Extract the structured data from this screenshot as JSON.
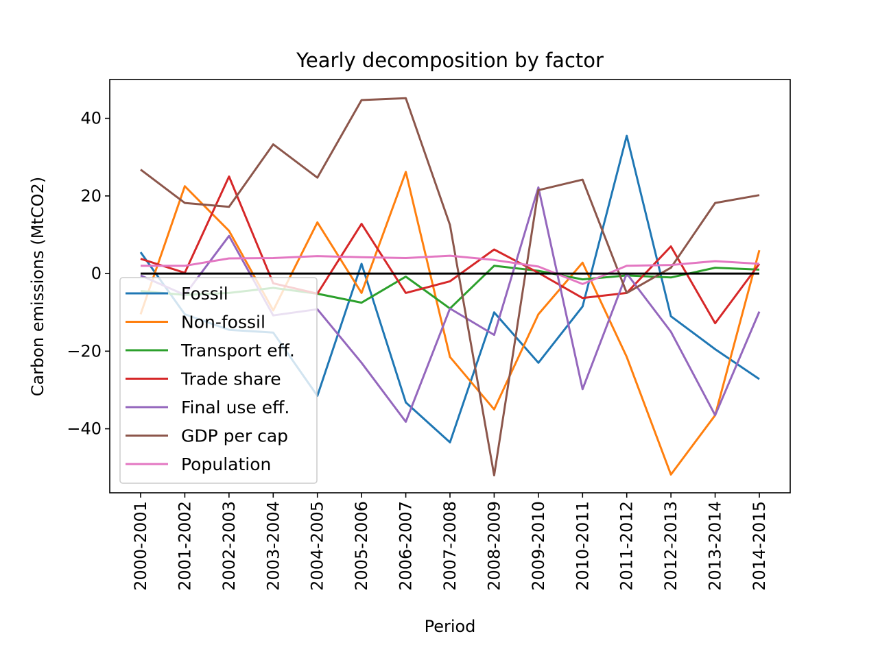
{
  "chart_data": {
    "type": "line",
    "title": "Yearly decomposition by factor",
    "xlabel": "Period",
    "ylabel": "Carbon emissions (MtCO2)",
    "categories": [
      "2000-2001",
      "2001-2002",
      "2002-2003",
      "2003-2004",
      "2004-2005",
      "2005-2006",
      "2006-2007",
      "2007-2008",
      "2008-2009",
      "2009-2010",
      "2010-2011",
      "2011-2012",
      "2012-2013",
      "2013-2014",
      "2014-2015"
    ],
    "ylim": [
      -56.5,
      50
    ],
    "yticks": [
      -40,
      -20,
      0,
      20,
      40
    ],
    "ytick_labels": [
      "−40",
      "−20",
      "0",
      "20",
      "40"
    ],
    "grid": false,
    "legend_position": "lower-left",
    "zero_line": {
      "value": 0,
      "color": "#000000"
    },
    "series": [
      {
        "name": "Fossil",
        "color": "#1f77b4",
        "values": [
          5.5,
          -10.5,
          -14.5,
          -15.2,
          -31.5,
          2.5,
          -33.2,
          -43.5,
          -10,
          -23,
          -8.5,
          35.5,
          -11,
          -19.5,
          -27.2
        ]
      },
      {
        "name": "Non-fossil",
        "color": "#ff7f0e",
        "values": [
          -10.5,
          22.5,
          11,
          -9.5,
          13.2,
          -5,
          26.2,
          -21.5,
          -35,
          -10.5,
          2.8,
          -21.5,
          -51.8,
          -36.5,
          6
        ]
      },
      {
        "name": "Transport eff.",
        "color": "#2ca02c",
        "values": [
          -4.5,
          -5.5,
          -5,
          -3.7,
          -5.2,
          -7.5,
          -0.8,
          -9,
          2,
          0.7,
          -1.5,
          -0.5,
          -1,
          1.5,
          1
        ]
      },
      {
        "name": "Trade share",
        "color": "#d62728",
        "values": [
          3.8,
          0.2,
          25,
          -2.5,
          -5.2,
          12.8,
          -5,
          -2,
          6.2,
          0.2,
          -6.3,
          -5,
          7,
          -12.8,
          2.5
        ]
      },
      {
        "name": "Final use eff.",
        "color": "#9467bd",
        "values": [
          -0.5,
          -5.5,
          9.7,
          -10.8,
          -9.2,
          -23,
          -38.2,
          -9,
          -15.8,
          22.2,
          -29.8,
          0,
          -15,
          -36.5,
          -9.8
        ]
      },
      {
        "name": "GDP per cap",
        "color": "#8c564b",
        "values": [
          26.8,
          18.2,
          17.2,
          33.3,
          24.7,
          44.7,
          45.2,
          12.5,
          -52,
          21.5,
          24.2,
          -5,
          1.5,
          18.2,
          20.2
        ]
      },
      {
        "name": "Population",
        "color": "#e377c2",
        "values": [
          2,
          2,
          3.9,
          4,
          4.5,
          4.2,
          4,
          4.6,
          3.5,
          1.8,
          -2.7,
          2,
          2.2,
          3.2,
          2.5
        ]
      }
    ]
  }
}
